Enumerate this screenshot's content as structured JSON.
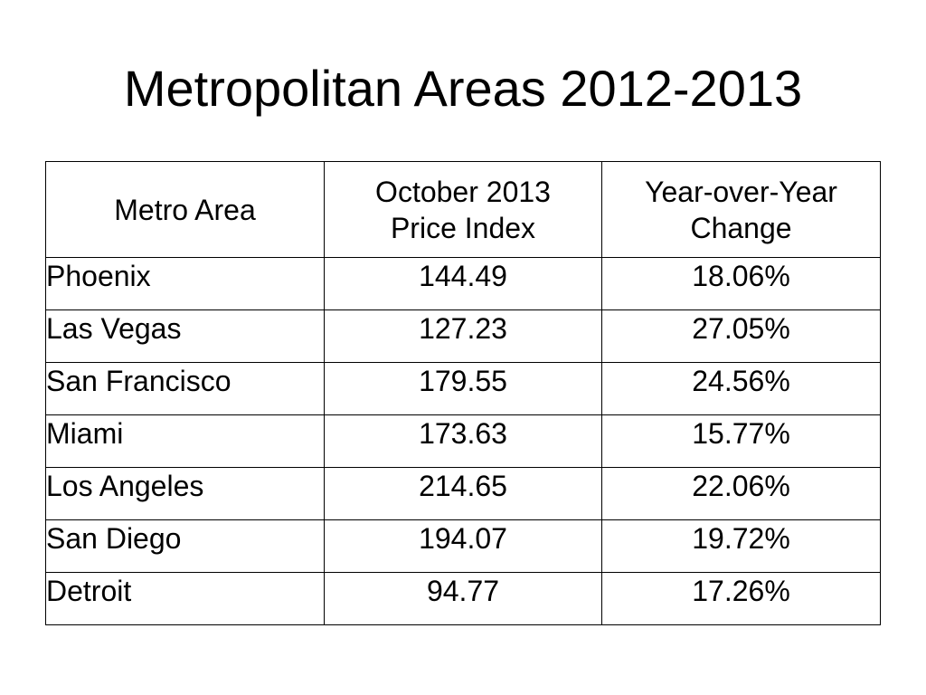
{
  "title": "Metropolitan Areas 2012-2013",
  "table": {
    "headers": {
      "metro": "Metro Area",
      "index_line1": "October 2013",
      "index_line2": "Price Index",
      "change_line1": "Year-over-Year",
      "change_line2": "Change"
    },
    "rows": [
      {
        "metro": "Phoenix",
        "index": "144.49",
        "change": "18.06%"
      },
      {
        "metro": "Las Vegas",
        "index": "127.23",
        "change": "27.05%"
      },
      {
        "metro": "San Francisco",
        "index": "179.55",
        "change": "24.56%"
      },
      {
        "metro": "Miami",
        "index": "173.63",
        "change": "15.77%"
      },
      {
        "metro": "Los Angeles",
        "index": "214.65",
        "change": "22.06%"
      },
      {
        "metro": "San Diego",
        "index": "194.07",
        "change": "19.72%"
      },
      {
        "metro": "Detroit",
        "index": "94.77",
        "change": "17.26%"
      }
    ]
  }
}
